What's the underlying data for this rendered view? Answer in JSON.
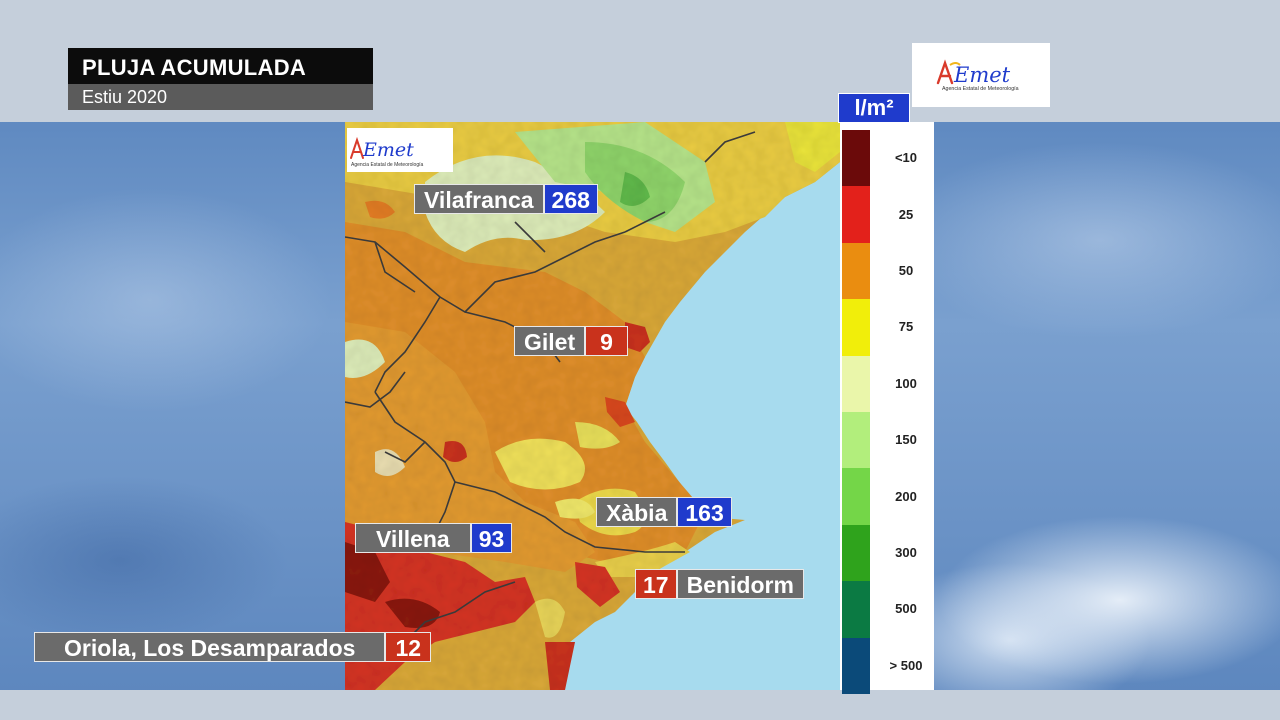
{
  "header": {
    "title": "PLUJA ACUMULADA",
    "subtitle": "Estiu 2020"
  },
  "logo": {
    "text": "AEmet",
    "tagline": "Agencia Estatal de Meteorología"
  },
  "map_logo": {
    "text": "AEmet",
    "tagline": "Agencia Estatal de Meteorología"
  },
  "legend": {
    "unit": "l/m²",
    "items": [
      {
        "label": "<10",
        "color": "#6b0a0a"
      },
      {
        "label": "25",
        "color": "#e3211b"
      },
      {
        "label": "50",
        "color": "#ea8d10"
      },
      {
        "label": "75",
        "color": "#f1ee0a"
      },
      {
        "label": "100",
        "color": "#eaf6aa"
      },
      {
        "label": "150",
        "color": "#b2ee7c"
      },
      {
        "label": "200",
        "color": "#74d648"
      },
      {
        "label": "300",
        "color": "#2fa31c"
      },
      {
        "label": "500",
        "color": "#0b7a43"
      },
      {
        "label": "> 500",
        "color": "#0b4a79"
      }
    ]
  },
  "stations": [
    {
      "name": "Vilafranca",
      "value": "268",
      "color": "blue"
    },
    {
      "name": "Gilet",
      "value": "9",
      "color": "red"
    },
    {
      "name": "Xàbia",
      "value": "163",
      "color": "blue"
    },
    {
      "name": "Villena",
      "value": "93",
      "color": "blue"
    },
    {
      "name": "Benidorm",
      "value": "17",
      "color": "red"
    },
    {
      "name": "Oriola, Los Desamparados",
      "value": "12",
      "color": "red"
    }
  ]
}
